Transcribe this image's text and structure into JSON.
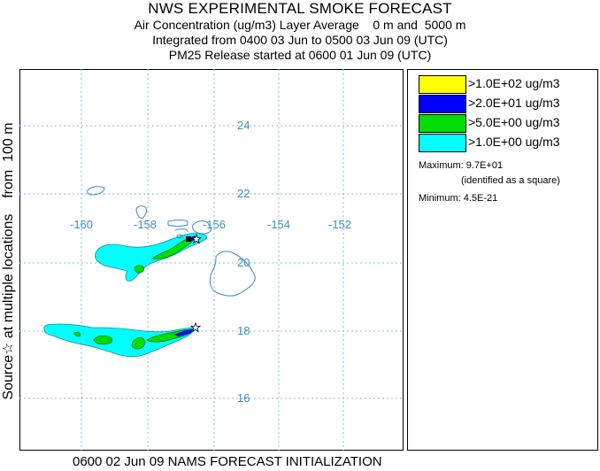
{
  "header": {
    "title": "NWS EXPERIMENTAL SMOKE FORECAST",
    "line1": "Air Concentration (ug/m3) Layer Average    0 m and  5000 m",
    "line2": "Integrated from 0400 03 Jun to 0500 03 Jun 09 (UTC)",
    "line3": "PM25 Release started at 0600 01 Jun 09 (UTC)"
  },
  "side_label": "Source☆ at multiple locations    from  100 m",
  "footer": "0600 02 Jun 09 NAMS FORECAST INITIALIZATION",
  "map": {
    "lon_labels": [
      "-160",
      "-158",
      "-156",
      "-154",
      "-152"
    ],
    "lat_labels": [
      "24",
      "22",
      "20",
      "18",
      "16"
    ],
    "grid_color": "#88bbdd",
    "label_color": "#3a8fc4",
    "coast_color": "#3a8fc4"
  },
  "legend": {
    "items": [
      {
        "label": ">1.0E+02 ug/m3",
        "color": "#ffff00"
      },
      {
        "label": ">2.0E+01 ug/m3",
        "color": "#0000ff"
      },
      {
        "label": ">5.0E+00 ug/m3",
        "color": "#00dd00"
      },
      {
        "label": ">1.0E+00 ug/m3",
        "color": "#00ffff"
      }
    ],
    "maximum": "Maximum: 9.7E+01",
    "max_note": "(identified as a square)",
    "minimum": "Minimum: 4.5E-21"
  }
}
